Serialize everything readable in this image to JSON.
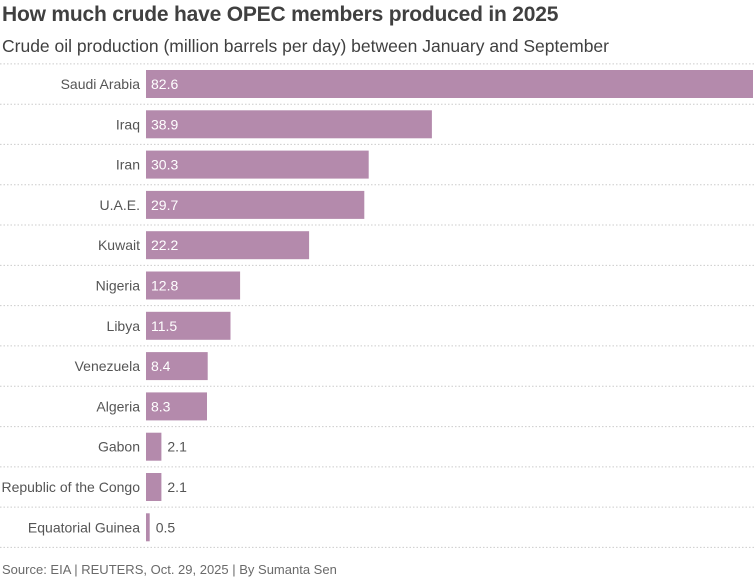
{
  "header": {
    "title": "How much crude have OPEC members produced in 2025",
    "subtitle": "Crude oil production (million barrels per day) between January and September"
  },
  "footer": {
    "source": "Source: EIA | REUTERS, Oct. 29, 2025 | By Sumanta Sen"
  },
  "colors": {
    "bar": "#b48aac",
    "label_inside": "#ffffff",
    "label_outside": "#555555",
    "gridline": "#cccccc"
  },
  "chart_data": {
    "type": "bar",
    "orientation": "horizontal",
    "title": "How much crude have OPEC members produced in 2025",
    "subtitle": "Crude oil production (million barrels per day) between January and September",
    "xlabel": "",
    "ylabel": "",
    "xlim": [
      0,
      82.6
    ],
    "grid": false,
    "categories": [
      "Saudi Arabia",
      "Iraq",
      "Iran",
      "U.A.E.",
      "Kuwait",
      "Nigeria",
      "Libya",
      "Venezuela",
      "Algeria",
      "Gabon",
      "Republic of the Congo",
      "Equatorial Guinea"
    ],
    "values": [
      82.6,
      38.9,
      30.3,
      29.7,
      22.2,
      12.8,
      11.5,
      8.4,
      8.3,
      2.1,
      2.1,
      0.5
    ],
    "value_labels": [
      "82.6",
      "38.9",
      "30.3",
      "29.7",
      "22.2",
      "12.8",
      "11.5",
      "8.4",
      "8.3",
      "2.1",
      "2.1",
      "0.5"
    ]
  }
}
